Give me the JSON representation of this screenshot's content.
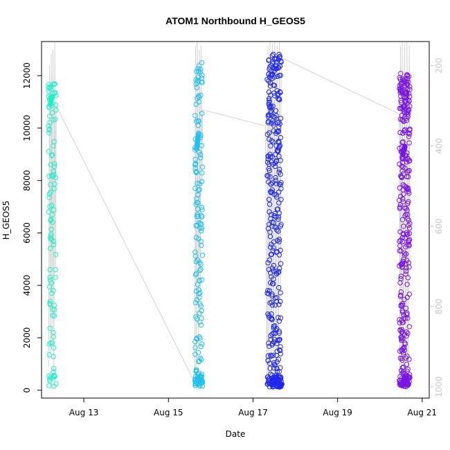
{
  "chart_data": {
    "type": "scatter",
    "title": "ATOM1 Northbound H_GEOS5",
    "xlabel": "Date",
    "ylabel": "H_GEOS5",
    "x_axis": {
      "unit": "date",
      "range": [
        "2016-08-12 00:00",
        "2016-08-21 04:00"
      ],
      "ticks": [
        {
          "value": "2016-08-13",
          "label": "Aug 13"
        },
        {
          "value": "2016-08-15",
          "label": "Aug 15"
        },
        {
          "value": "2016-08-17",
          "label": "Aug 17"
        },
        {
          "value": "2016-08-19",
          "label": "Aug 19"
        },
        {
          "value": "2016-08-21",
          "label": "Aug 21"
        }
      ]
    },
    "y_axis": {
      "range": [
        -300,
        13300
      ],
      "ticks": [
        0,
        2000,
        4000,
        6000,
        8000,
        10000,
        12000
      ]
    },
    "y2_axis": {
      "color": "#c8c8c8",
      "reversed": true,
      "range": [
        1028,
        140
      ],
      "ticks": [
        200,
        400,
        600,
        800,
        1000
      ]
    },
    "grid": false,
    "legend": "none",
    "marker": "open-circle",
    "background_trace": {
      "color": "#d3d3d3",
      "description_of_axis": "right axis (pressure-like, reversed)",
      "path": [
        [
          "2016-08-12 04:00",
          950
        ],
        [
          "2016-08-12 04:30",
          200
        ],
        [
          "2016-08-12 05:00",
          920
        ],
        [
          "2016-08-12 05:30",
          170
        ],
        [
          "2016-08-12 06:00",
          880
        ],
        [
          "2016-08-12 06:30",
          160
        ],
        [
          "2016-08-12 07:00",
          960
        ],
        [
          "2016-08-12 07:30",
          140
        ],
        [
          "2016-08-12 08:00",
          700
        ],
        [
          "2016-08-12 08:20",
          300
        ],
        [
          "2016-08-15 15:00",
          990
        ],
        [
          "2016-08-15 15:20",
          150
        ],
        [
          "2016-08-15 15:50",
          950
        ],
        [
          "2016-08-15 16:20",
          140
        ],
        [
          "2016-08-15 17:00",
          900
        ],
        [
          "2016-08-15 17:30",
          160
        ],
        [
          "2016-08-15 18:00",
          800
        ],
        [
          "2016-08-15 18:30",
          150
        ],
        [
          "2016-08-15 19:00",
          500
        ],
        [
          "2016-08-15 19:20",
          310
        ],
        [
          "2016-08-17 07:00",
          350
        ],
        [
          "2016-08-17 08:00",
          990
        ],
        [
          "2016-08-17 08:30",
          150
        ],
        [
          "2016-08-17 09:00",
          980
        ],
        [
          "2016-08-17 09:40",
          140
        ],
        [
          "2016-08-17 10:20",
          990
        ],
        [
          "2016-08-17 11:00",
          145
        ],
        [
          "2016-08-17 11:40",
          980
        ],
        [
          "2016-08-17 12:20",
          140
        ],
        [
          "2016-08-17 13:00",
          990
        ],
        [
          "2016-08-17 13:40",
          150
        ],
        [
          "2016-08-17 14:20",
          970
        ],
        [
          "2016-08-17 15:00",
          140
        ],
        [
          "2016-08-17 15:30",
          800
        ],
        [
          "2016-08-17 16:00",
          180
        ],
        [
          "2016-08-20 11:00",
          320
        ],
        [
          "2016-08-20 11:20",
          980
        ],
        [
          "2016-08-20 11:40",
          150
        ],
        [
          "2016-08-20 12:10",
          970
        ],
        [
          "2016-08-20 12:40",
          140
        ],
        [
          "2016-08-20 13:20",
          990
        ],
        [
          "2016-08-20 14:00",
          145
        ],
        [
          "2016-08-20 14:40",
          980
        ],
        [
          "2016-08-20 15:20",
          140
        ],
        [
          "2016-08-20 16:00",
          990
        ],
        [
          "2016-08-20 16:40",
          150
        ],
        [
          "2016-08-20 17:00",
          700
        ]
      ]
    },
    "series": [
      {
        "color": "#1ef0c8",
        "start": "2016-08-12 04:00",
        "end": "2016-08-12 08:20",
        "low": 150,
        "high": 11700,
        "count": 110,
        "cluster": {
          "time": "2016-08-12 05:00",
          "low": 10900,
          "high": 11200,
          "count": 14
        },
        "seed": 11
      },
      {
        "color": "#1ec0f0",
        "start": "2016-08-15 15:00",
        "end": "2016-08-15 19:20",
        "low": 150,
        "high": 12500,
        "count": 170,
        "cluster": {
          "time": "2016-08-15 16:00",
          "low": 9200,
          "high": 9800,
          "count": 18
        },
        "seed": 23
      },
      {
        "color": "#1e28f0",
        "start": "2016-08-17 08:00",
        "end": "2016-08-17 16:00",
        "low": 120,
        "high": 12850,
        "count": 360,
        "cluster": {
          "time": "2016-08-17 15:00",
          "low": 120,
          "high": 230,
          "count": 22
        },
        "seed": 37
      },
      {
        "color": "#7814e6",
        "start": "2016-08-20 11:00",
        "end": "2016-08-20 17:00",
        "low": 130,
        "high": 12100,
        "count": 330,
        "cluster": {
          "time": "2016-08-20 13:00",
          "low": 9000,
          "high": 9300,
          "count": 20
        },
        "seed": 53
      }
    ]
  }
}
